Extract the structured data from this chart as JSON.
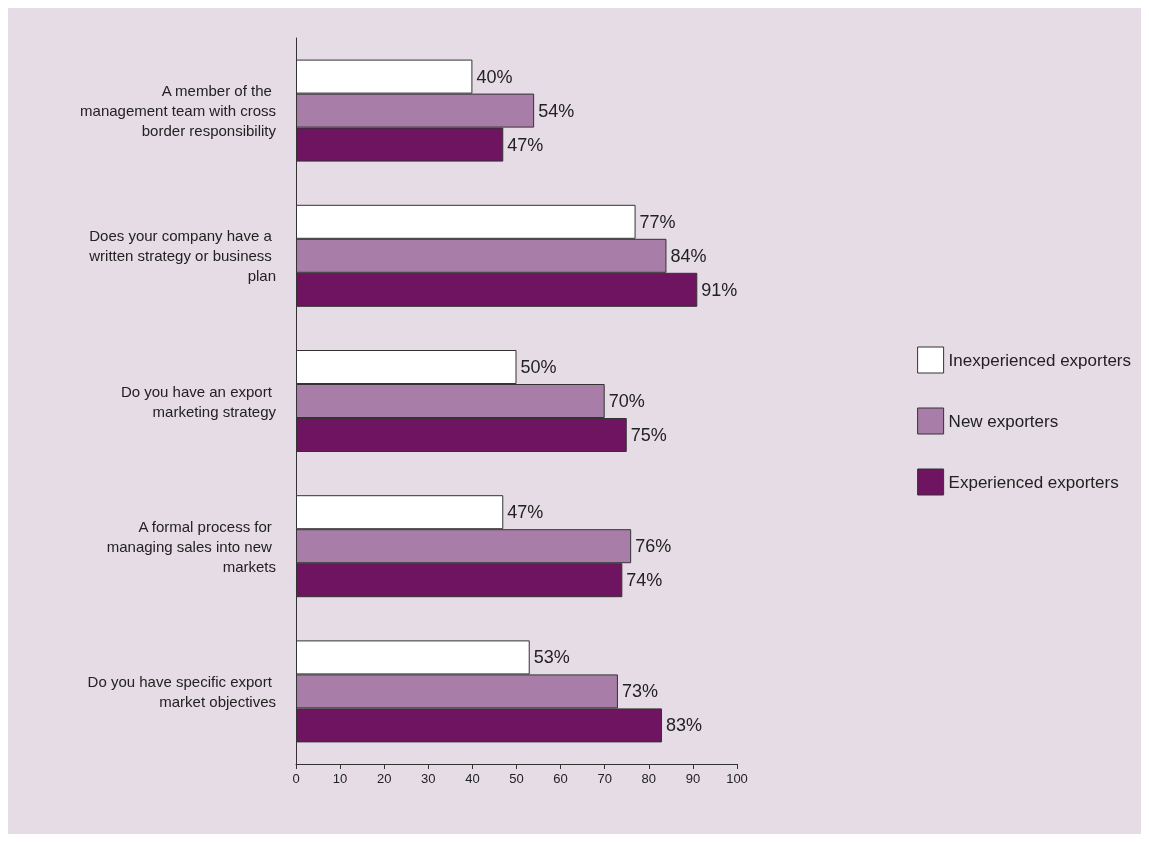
{
  "chart_data": {
    "type": "bar",
    "orientation": "horizontal",
    "categories": [
      "A member of the management team with cross border responsibility",
      "Does your company have a written strategy or business plan",
      "Do you have an export marketing strategy",
      "A formal process for managing sales into new markets",
      "Do you have specific export market objectives"
    ],
    "series": [
      {
        "name": "Inexperienced exporters",
        "color": "#ffffff",
        "values": [
          40,
          77,
          50,
          47,
          53
        ],
        "value_labels": [
          "40%",
          "77%",
          "50%",
          "47%",
          "53%"
        ]
      },
      {
        "name": "New exporters",
        "color": "#a87ea8",
        "values": [
          54,
          84,
          70,
          76,
          73
        ],
        "value_labels": [
          "54%",
          "84%",
          "70%",
          "76%",
          "73%"
        ]
      },
      {
        "name": "Experienced exporters",
        "color": "#6e1461",
        "values": [
          47,
          91,
          75,
          74,
          83
        ],
        "value_labels": [
          "47%",
          "91%",
          "75%",
          "74%",
          "83%"
        ]
      }
    ],
    "xlim": [
      0,
      100
    ],
    "xticks": [
      0,
      10,
      20,
      30,
      40,
      50,
      60,
      70,
      80,
      90,
      100
    ],
    "grid": false,
    "legend": "right"
  }
}
